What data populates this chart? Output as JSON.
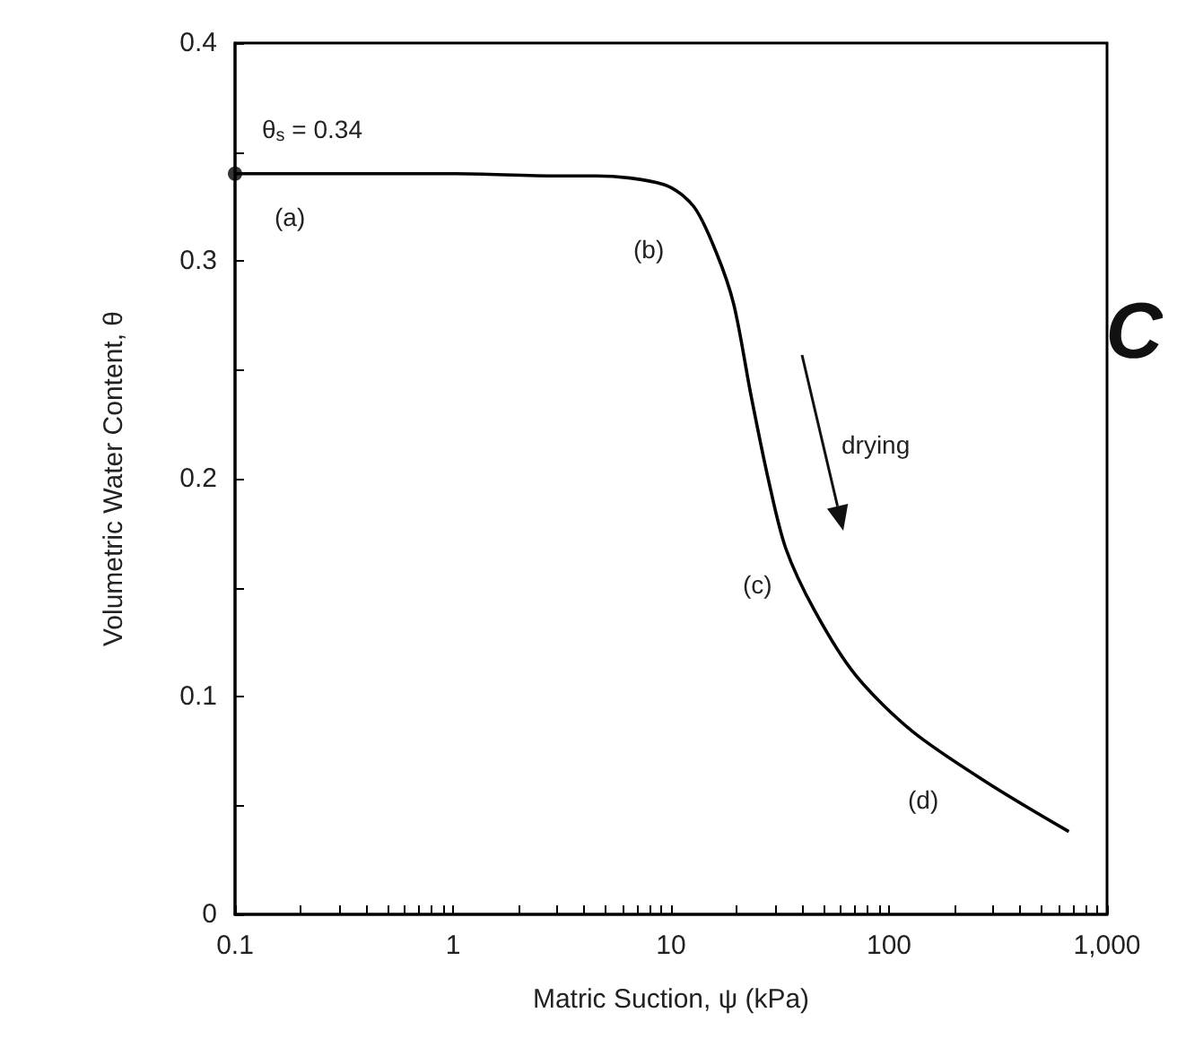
{
  "chart_data": {
    "type": "line",
    "xlabel": "Matric Suction, ψ (kPa)",
    "ylabel": "Volumetric Water Content, θ",
    "log": "x",
    "xlim": [
      0.1,
      1000
    ],
    "ylim": [
      0,
      0.4
    ],
    "xticks": [
      0.1,
      {
        "value": 0.2,
        "label": null
      },
      {
        "value": 0.3,
        "label": null
      },
      {
        "value": 0.4,
        "label": null
      },
      {
        "value": 0.5,
        "label": null
      },
      {
        "value": 0.6,
        "label": null
      },
      {
        "value": 0.7,
        "label": null
      },
      {
        "value": 0.8,
        "label": null
      },
      {
        "value": 0.9,
        "label": null
      },
      1,
      {
        "value": 2,
        "label": null
      },
      {
        "value": 3,
        "label": null
      },
      {
        "value": 4,
        "label": null
      },
      {
        "value": 5,
        "label": null
      },
      {
        "value": 6,
        "label": null
      },
      {
        "value": 7,
        "label": null
      },
      {
        "value": 8,
        "label": null
      },
      {
        "value": 9,
        "label": null
      },
      10,
      {
        "value": 20,
        "label": null
      },
      {
        "value": 30,
        "label": null
      },
      {
        "value": 40,
        "label": null
      },
      {
        "value": 50,
        "label": null
      },
      {
        "value": 60,
        "label": null
      },
      {
        "value": 70,
        "label": null
      },
      {
        "value": 80,
        "label": null
      },
      {
        "value": 90,
        "label": null
      },
      100,
      {
        "value": 200,
        "label": null
      },
      {
        "value": 300,
        "label": null
      },
      {
        "value": 400,
        "label": null
      },
      {
        "value": 500,
        "label": null
      },
      {
        "value": 600,
        "label": null
      },
      {
        "value": 700,
        "label": null
      },
      {
        "value": 800,
        "label": null
      },
      {
        "value": 900,
        "label": null
      },
      {
        "value": 1000,
        "label": "1,000"
      }
    ],
    "yticks": [
      0,
      {
        "value": 0.05,
        "label": null
      },
      0.1,
      {
        "value": 0.15,
        "label": null
      },
      0.2,
      {
        "value": 0.25,
        "label": null
      },
      0.3,
      {
        "value": 0.35,
        "label": null
      },
      0.4
    ],
    "grid": false,
    "series": [
      {
        "color": "#000000",
        "marker": "none",
        "x": [
          0.1,
          1,
          3,
          4.5,
          9.3,
          12.7,
          16.1,
          19.4,
          23.3,
          27.9,
          33.6,
          45.8,
          70,
          128,
          287,
          668
        ],
        "values": [
          0.34,
          0.34,
          0.339,
          0.339,
          0.335,
          0.325,
          0.304,
          0.28,
          0.238,
          0.2,
          0.168,
          0.139,
          0.11,
          0.084,
          0.06,
          0.038
        ]
      },
      {
        "type": "scatter",
        "color": "#000000",
        "marker": "circle",
        "x": [
          0.1
        ],
        "values": [
          0.34
        ]
      }
    ],
    "annotations": [
      "θ$_{s}$ = 0.34",
      "(a)",
      "(b)",
      "(c)",
      "(d)",
      "drying",
      "C"
    ]
  }
}
